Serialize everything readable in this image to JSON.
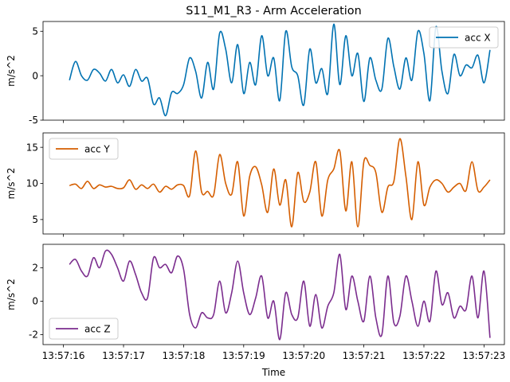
{
  "chart_data": {
    "type": "line",
    "title": "S11_M1_R3 - Arm Acceleration",
    "xlabel": "Time",
    "x_tick_labels": [
      "13:57:16",
      "13:57:17",
      "13:57:18",
      "13:57:19",
      "13:57:20",
      "13:57:21",
      "13:57:22",
      "13:57:23"
    ],
    "x_tick_seconds": [
      16,
      17,
      18,
      19,
      20,
      21,
      22,
      23
    ],
    "xlim_seconds": [
      15.66,
      23.34
    ],
    "grid": false,
    "panels": [
      {
        "ylabel": "m/s^2",
        "ylim": [
          -5,
          6.1
        ],
        "yticks": [
          -5,
          0,
          5
        ],
        "legend_position": "upper right",
        "series": [
          {
            "name": "acc X",
            "color": "#0072b2",
            "x": [
              16.1,
              16.2,
              16.3,
              16.4,
              16.5,
              16.6,
              16.7,
              16.8,
              16.9,
              17.0,
              17.1,
              17.2,
              17.3,
              17.4,
              17.5,
              17.6,
              17.7,
              17.8,
              17.9,
              18.0,
              18.1,
              18.2,
              18.3,
              18.4,
              18.5,
              18.6,
              18.7,
              18.8,
              18.9,
              19.0,
              19.1,
              19.2,
              19.3,
              19.4,
              19.5,
              19.6,
              19.7,
              19.8,
              19.9,
              20.0,
              20.1,
              20.2,
              20.3,
              20.4,
              20.5,
              20.6,
              20.7,
              20.8,
              20.9,
              21.0,
              21.1,
              21.2,
              21.3,
              21.4,
              21.5,
              21.6,
              21.7,
              21.8,
              21.9,
              22.0,
              22.1,
              22.2,
              22.3,
              22.4,
              22.5,
              22.6,
              22.7,
              22.8,
              22.9,
              23.0,
              23.1
            ],
            "values": [
              -0.5,
              1.6,
              0.0,
              -0.5,
              0.7,
              0.3,
              -0.6,
              0.7,
              -0.8,
              0.1,
              -1.2,
              0.7,
              -0.6,
              -0.3,
              -3.2,
              -2.5,
              -4.5,
              -1.9,
              -2.0,
              -1.0,
              2.0,
              0.5,
              -2.5,
              1.5,
              -1.5,
              4.8,
              3.0,
              -0.8,
              3.5,
              -2.0,
              1.5,
              -1.0,
              4.5,
              0.0,
              2.0,
              -2.8,
              5.0,
              1.0,
              0.0,
              -3.3,
              3.0,
              -0.8,
              0.8,
              -2.0,
              5.8,
              -1.0,
              4.5,
              0.0,
              2.5,
              -2.9,
              2.0,
              -0.5,
              -1.5,
              4.2,
              1.0,
              -1.5,
              2.0,
              -0.5,
              5.0,
              2.5,
              -2.8,
              5.5,
              0.5,
              -2.0,
              2.4,
              0.0,
              1.2,
              0.9,
              2.3,
              -0.8,
              2.9
            ]
          }
        ]
      },
      {
        "ylabel": "m/s^2",
        "ylim": [
          3,
          17
        ],
        "yticks": [
          5,
          10,
          15
        ],
        "legend_position": "upper left",
        "series": [
          {
            "name": "acc Y",
            "color": "#d55e00",
            "x": [
              16.1,
              16.2,
              16.3,
              16.4,
              16.5,
              16.6,
              16.7,
              16.8,
              16.9,
              17.0,
              17.1,
              17.2,
              17.3,
              17.4,
              17.5,
              17.6,
              17.7,
              17.8,
              17.9,
              18.0,
              18.1,
              18.2,
              18.3,
              18.4,
              18.5,
              18.6,
              18.7,
              18.8,
              18.9,
              19.0,
              19.1,
              19.2,
              19.3,
              19.4,
              19.5,
              19.6,
              19.7,
              19.8,
              19.9,
              20.0,
              20.1,
              20.2,
              20.3,
              20.4,
              20.5,
              20.6,
              20.7,
              20.8,
              20.9,
              21.0,
              21.1,
              21.2,
              21.3,
              21.4,
              21.5,
              21.6,
              21.7,
              21.8,
              21.9,
              22.0,
              22.1,
              22.2,
              22.3,
              22.4,
              22.5,
              22.6,
              22.7,
              22.8,
              22.9,
              23.0,
              23.1
            ],
            "values": [
              9.7,
              9.9,
              9.3,
              10.3,
              9.3,
              9.8,
              9.5,
              9.6,
              9.3,
              9.4,
              10.5,
              9.2,
              9.8,
              9.3,
              9.9,
              8.8,
              9.6,
              9.2,
              9.8,
              9.7,
              8.3,
              14.5,
              8.8,
              8.9,
              8.4,
              14.0,
              10.0,
              8.5,
              13.0,
              5.5,
              11.0,
              12.3,
              9.8,
              6.0,
              12.0,
              7.0,
              10.5,
              4.0,
              11.5,
              7.5,
              8.8,
              13.0,
              5.5,
              10.5,
              12.0,
              14.5,
              6.2,
              13.0,
              4.0,
              13.0,
              12.5,
              11.5,
              6.0,
              9.5,
              10.3,
              16.2,
              11.0,
              5.0,
              13.0,
              7.0,
              9.5,
              10.5,
              10.0,
              8.8,
              9.5,
              10.0,
              9.0,
              13.0,
              9.0,
              9.5,
              10.5
            ]
          }
        ]
      },
      {
        "ylabel": "m/s^2",
        "ylim": [
          -2.6,
          3.4
        ],
        "yticks": [
          -2,
          0,
          2
        ],
        "legend_position": "lower left",
        "series": [
          {
            "name": "acc Z",
            "color": "#7b2d8e",
            "x": [
              16.1,
              16.2,
              16.3,
              16.4,
              16.5,
              16.6,
              16.7,
              16.8,
              16.9,
              17.0,
              17.1,
              17.2,
              17.3,
              17.4,
              17.5,
              17.6,
              17.7,
              17.8,
              17.9,
              18.0,
              18.1,
              18.2,
              18.3,
              18.4,
              18.5,
              18.6,
              18.7,
              18.8,
              18.9,
              19.0,
              19.1,
              19.2,
              19.3,
              19.4,
              19.5,
              19.6,
              19.7,
              19.8,
              19.9,
              20.0,
              20.1,
              20.2,
              20.3,
              20.4,
              20.5,
              20.6,
              20.7,
              20.8,
              20.9,
              21.0,
              21.1,
              21.2,
              21.3,
              21.4,
              21.5,
              21.6,
              21.7,
              21.8,
              21.9,
              22.0,
              22.1,
              22.2,
              22.3,
              22.4,
              22.5,
              22.6,
              22.7,
              22.8,
              22.9,
              23.0,
              23.1
            ],
            "values": [
              2.2,
              2.5,
              1.8,
              1.5,
              2.6,
              2.0,
              3.0,
              2.8,
              2.0,
              1.2,
              2.4,
              1.6,
              0.5,
              0.2,
              2.6,
              2.0,
              2.2,
              1.7,
              2.7,
              1.9,
              -0.8,
              -1.6,
              -0.7,
              -1.0,
              -0.8,
              1.2,
              -0.7,
              0.5,
              2.4,
              0.5,
              -0.8,
              0.2,
              1.5,
              -1.0,
              0.0,
              -2.3,
              0.5,
              -0.8,
              -1.0,
              1.2,
              -1.5,
              0.4,
              -1.6,
              -0.3,
              0.5,
              2.8,
              -0.5,
              1.5,
              0.0,
              -1.2,
              1.5,
              -1.0,
              -2.0,
              1.5,
              -1.3,
              -0.9,
              1.5,
              0.0,
              -1.5,
              0.0,
              -1.2,
              1.8,
              -0.2,
              0.5,
              -1.0,
              -0.3,
              -0.5,
              1.5,
              -1.0,
              1.8,
              -2.2
            ]
          }
        ]
      }
    ]
  }
}
